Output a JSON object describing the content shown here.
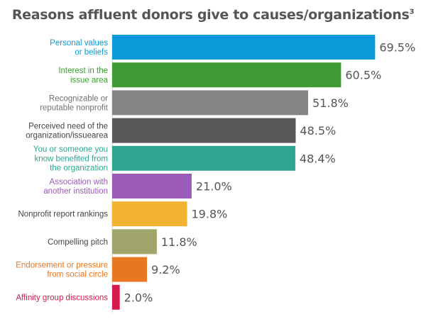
{
  "chart_data": {
    "type": "bar",
    "orientation": "horizontal",
    "title": "Reasons affluent donors give to causes/organizations",
    "title_superscript": "3",
    "categories": [
      [
        "Personal values",
        "or beliefs"
      ],
      [
        "Interest in the",
        "issue area"
      ],
      [
        "Recognizable or",
        "reputable nonprofit"
      ],
      [
        "Perceived need of the",
        "organization/issuearea"
      ],
      [
        "You or someone you",
        "know benefited from",
        "the organization"
      ],
      [
        "Association with",
        "another institution"
      ],
      [
        "Nonprofit report rankings"
      ],
      [
        "Compelling pitch"
      ],
      [
        "Endorsement or pressure",
        "from social circle"
      ],
      [
        "Affinity group discussions"
      ]
    ],
    "values": [
      69.5,
      60.5,
      51.8,
      48.5,
      48.4,
      21.0,
      19.8,
      11.8,
      9.2,
      2.0
    ],
    "value_labels": [
      "69.5%",
      "60.5%",
      "51.8%",
      "48.5%",
      "48.4%",
      "21.0%",
      "19.8%",
      "11.8%",
      "9.2%",
      "2.0%"
    ],
    "bar_colors": [
      "#0b9ad9",
      "#3f9b35",
      "#848587",
      "#58585a",
      "#2ea58f",
      "#9a5bb8",
      "#f2b233",
      "#a0a56c",
      "#e87722",
      "#d6194b"
    ],
    "label_colors": [
      "#0b9ad9",
      "#3f9b35",
      "#707070",
      "#444444",
      "#2ea58f",
      "#9a5bb8",
      "#444444",
      "#444444",
      "#e87722",
      "#d6194b"
    ],
    "xlim": [
      0,
      70
    ],
    "grid": false,
    "legend": "none"
  }
}
